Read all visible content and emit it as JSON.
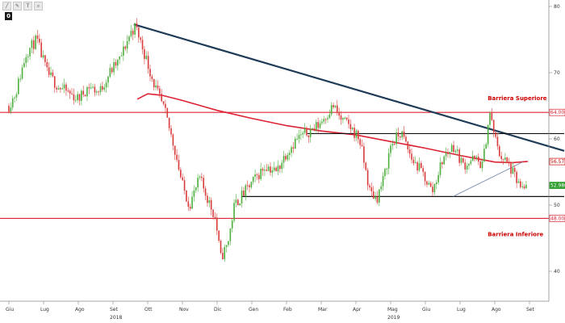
{
  "toolbar": {
    "icons": [
      "line-tool-icon",
      "pencil-icon",
      "text-tool-icon",
      "zoom-icon"
    ],
    "badge": "0"
  },
  "chart_data": {
    "type": "candlestick",
    "series": [
      {
        "name": "price",
        "role": "ohlc"
      },
      {
        "name": "moving-average",
        "role": "line",
        "color": "#dd2233"
      }
    ],
    "x_ticks": [
      "Giu",
      "Lug",
      "Ago",
      "Set",
      "Ott",
      "Nov",
      "Dic",
      "Gen",
      "Feb",
      "Mar",
      "Apr",
      "Mag",
      "Giu",
      "Lug",
      "Ago",
      "Set"
    ],
    "year_labels": [
      "2018",
      "2019"
    ],
    "y_ticks": [
      40,
      50,
      60,
      70,
      80
    ],
    "ylim": [
      36,
      82
    ],
    "levels": [
      {
        "label": "64.0000",
        "value": 64,
        "color": "#dd2233"
      },
      {
        "label": "48.0000",
        "value": 48,
        "color": "#dd2233"
      }
    ],
    "price_tags": [
      {
        "label": "56.5750",
        "value": 56.575,
        "bg": "#ffffff",
        "fg": "#cc0000",
        "border": "#cc0000"
      },
      {
        "label": "52.9800",
        "value": 52.98,
        "bg": "#2e9e2e",
        "fg": "#ffffff",
        "border": "#2e9e2e"
      }
    ],
    "annotations": [
      {
        "text": "Barriera Superiore",
        "t": 15.4,
        "value": 66.2
      },
      {
        "text": "Barriera Inferiore",
        "t": 15.4,
        "value": 45.7
      }
    ],
    "trendlines": [
      {
        "name": "trendline-resistance",
        "t0": 3.6,
        "v0": 77.3,
        "t1": 16.0,
        "v1": 58.2,
        "color": "#1f3b57",
        "width": 2.2
      },
      {
        "name": "range-top",
        "t0": 8.6,
        "v0": 60.8,
        "t1": 16.0,
        "v1": 60.8,
        "color": "#111111",
        "width": 1.2
      },
      {
        "name": "range-bottom",
        "t0": 6.7,
        "v0": 51.3,
        "t1": 16.0,
        "v1": 51.3,
        "color": "#111111",
        "width": 1.2
      },
      {
        "name": "trendline-support",
        "t0": 12.8,
        "v0": 51.3,
        "t1": 14.8,
        "v1": 56.5,
        "color": "#7a8db0",
        "width": 0.9
      }
    ],
    "path_t": [
      0,
      0.2,
      0.5,
      0.8,
      1.1,
      1.4,
      1.7,
      2.0,
      2.3,
      2.6,
      2.9,
      3.2,
      3.5,
      3.65,
      3.9,
      4.2,
      4.5,
      4.8,
      5.0,
      5.2,
      5.5,
      5.8,
      5.95,
      6.1,
      6.3,
      6.5,
      6.8,
      7.1,
      7.4,
      7.7,
      8.0,
      8.3,
      8.6,
      8.9,
      9.2,
      9.35,
      9.55,
      9.8,
      10.1,
      10.4,
      10.6,
      10.8,
      11.0,
      11.3,
      11.6,
      11.9,
      12.2,
      12.5,
      12.8,
      13.1,
      13.4,
      13.65,
      13.85,
      14.1,
      14.4,
      14.6,
      14.8,
      14.95
    ],
    "path_v": [
      65,
      67,
      73,
      75,
      70,
      68,
      67,
      66,
      68,
      67,
      70,
      72,
      76,
      77,
      73,
      68,
      64,
      58,
      53,
      50,
      54,
      50,
      48,
      42,
      44,
      50,
      52,
      54,
      56,
      55,
      58,
      60,
      61,
      62,
      64,
      65,
      63,
      62,
      60,
      52,
      51,
      54,
      59,
      61,
      57,
      55,
      52,
      57,
      59,
      56,
      57,
      56,
      64,
      58,
      56,
      54,
      52,
      53
    ],
    "ma_t": [
      3.7,
      4.0,
      4.4,
      5.0,
      6.0,
      7.0,
      8.0,
      9.0,
      10.0,
      11.0,
      12.0,
      13.0,
      14.0,
      14.5,
      14.95
    ],
    "ma_v": [
      66,
      66.8,
      66.6,
      65.8,
      64.3,
      63.1,
      62.0,
      61.2,
      60.6,
      59.6,
      58.6,
      57.5,
      56.5,
      56.4,
      56.6
    ]
  }
}
